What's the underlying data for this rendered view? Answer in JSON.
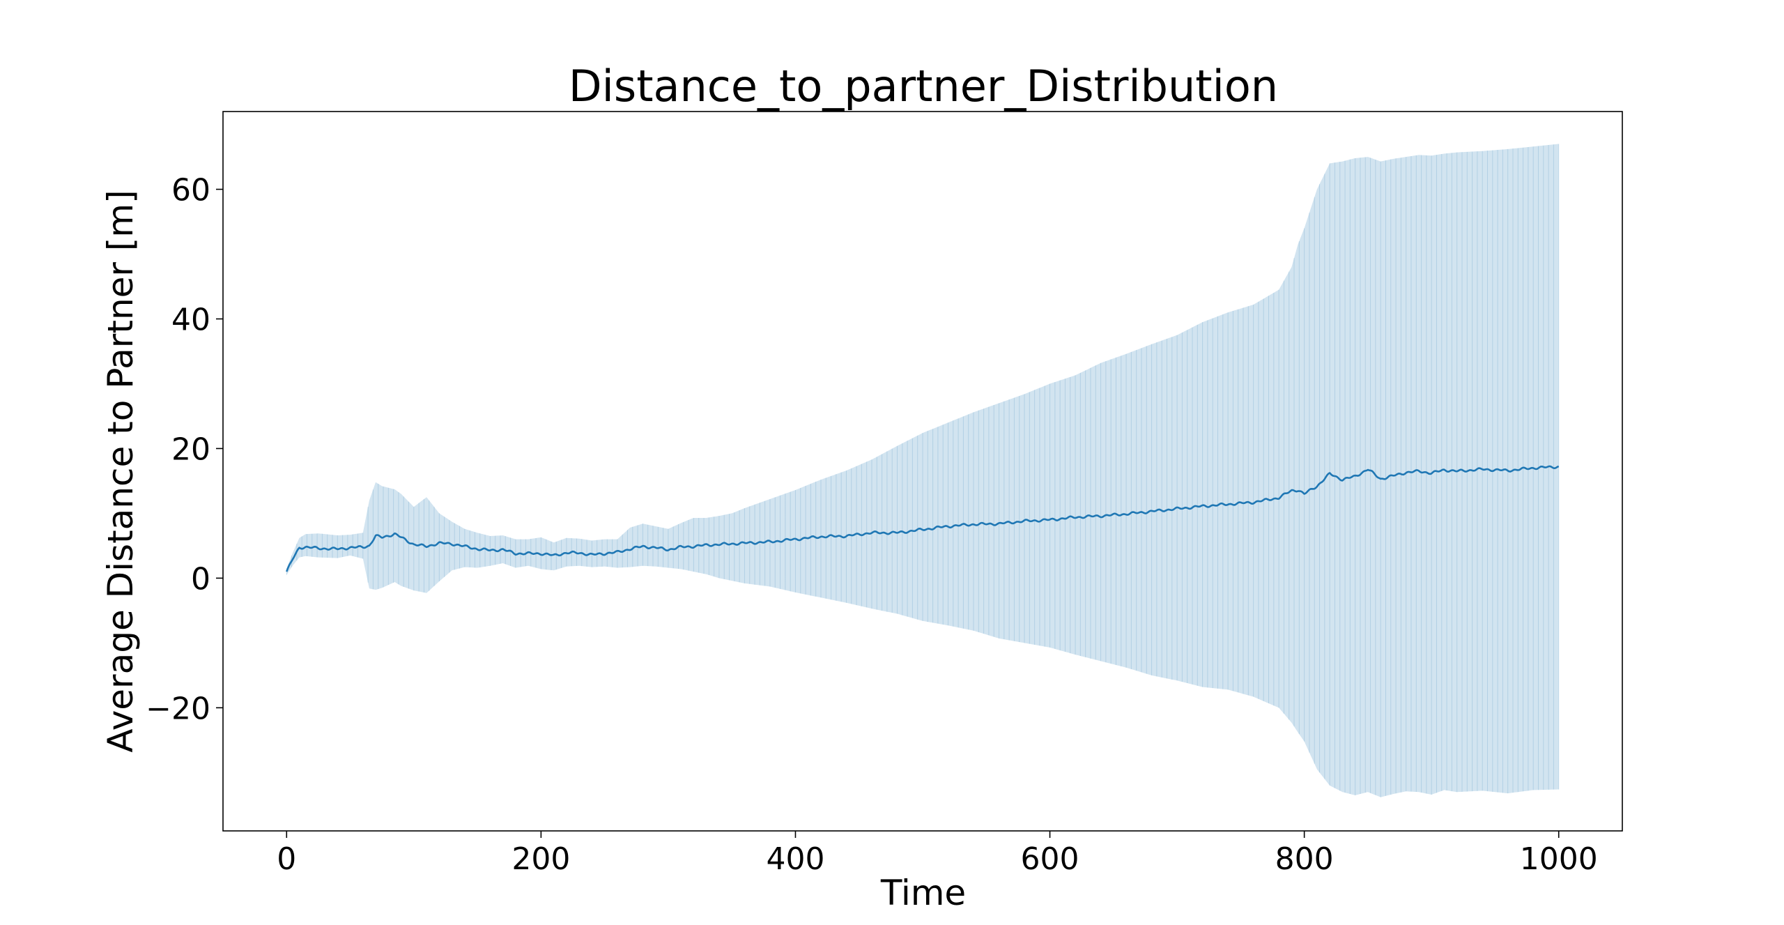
{
  "chart_data": {
    "type": "line",
    "title": "Distance_to_partner_Distribution",
    "xlabel": "Time",
    "ylabel": "Average Distance to Partner [m]",
    "xlim": [
      -50,
      1050
    ],
    "ylim": [
      -39,
      72
    ],
    "xticks": [
      0,
      200,
      400,
      600,
      800,
      1000
    ],
    "xtick_labels": [
      "0",
      "200",
      "400",
      "600",
      "800",
      "1000"
    ],
    "yticks": [
      -20,
      0,
      20,
      40,
      60
    ],
    "ytick_labels": [
      "−20",
      "0",
      "20",
      "40",
      "60"
    ],
    "grid": false,
    "legend": "none",
    "colors": {
      "line": "#1f77b4",
      "band": "#1f77b4",
      "band_opacity": 0.2,
      "axes": "#000000"
    },
    "series": [
      {
        "x": [
          0,
          5,
          10,
          15,
          25,
          40,
          50,
          60,
          65,
          70,
          75,
          85,
          90,
          100,
          110,
          120,
          130,
          140,
          150,
          160,
          170,
          180,
          190,
          200,
          210,
          220,
          230,
          240,
          250,
          260,
          270,
          280,
          290,
          300,
          310,
          320,
          330,
          340,
          350,
          360,
          380,
          400,
          420,
          440,
          460,
          480,
          500,
          520,
          540,
          560,
          580,
          600,
          620,
          640,
          660,
          680,
          700,
          720,
          740,
          760,
          780,
          790,
          795,
          800,
          810,
          820,
          830,
          840,
          850,
          860,
          870,
          880,
          890,
          900,
          910,
          920,
          940,
          960,
          980,
          1000
        ],
        "mean": [
          1.0,
          3.0,
          4.7,
          4.8,
          4.6,
          4.5,
          4.7,
          4.8,
          5.0,
          6.5,
          6.3,
          6.8,
          6.3,
          5.2,
          4.9,
          5.4,
          5.3,
          4.9,
          4.5,
          4.3,
          4.4,
          3.8,
          3.8,
          3.8,
          3.5,
          3.9,
          3.9,
          3.6,
          3.8,
          4.0,
          4.5,
          4.9,
          4.7,
          4.4,
          4.8,
          4.9,
          5.1,
          5.2,
          5.3,
          5.4,
          5.6,
          6.0,
          6.4,
          6.5,
          7.0,
          7.0,
          7.5,
          8.0,
          8.3,
          8.4,
          8.8,
          9.0,
          9.4,
          9.6,
          9.9,
          10.3,
          10.7,
          11.1,
          11.4,
          11.7,
          12.4,
          13.5,
          13.6,
          13.0,
          14.2,
          16.1,
          15.2,
          15.7,
          16.8,
          15.3,
          15.8,
          16.3,
          16.5,
          16.2,
          16.7,
          16.5,
          16.8,
          16.6,
          17.0,
          17.2
        ],
        "upper": [
          1.5,
          4.0,
          6.2,
          6.8,
          6.9,
          6.6,
          6.7,
          7.0,
          12.0,
          14.8,
          14.2,
          13.7,
          13.0,
          11.0,
          12.5,
          10.0,
          8.7,
          7.6,
          7.0,
          6.5,
          6.6,
          6.0,
          6.0,
          6.3,
          5.5,
          6.2,
          6.1,
          5.8,
          6.0,
          6.0,
          7.8,
          8.4,
          8.0,
          7.6,
          8.5,
          9.3,
          9.3,
          9.6,
          10.0,
          10.8,
          12.2,
          13.6,
          15.2,
          16.6,
          18.3,
          20.4,
          22.4,
          24.0,
          25.6,
          27.0,
          28.4,
          30.0,
          31.3,
          33.2,
          34.6,
          36.1,
          37.5,
          39.5,
          41.0,
          42.2,
          44.5,
          48.0,
          51.5,
          54.0,
          60.0,
          64.0,
          64.3,
          64.8,
          65.0,
          64.3,
          64.7,
          65.0,
          65.3,
          65.2,
          65.5,
          65.7,
          65.9,
          66.2,
          66.6,
          67.0
        ],
        "lower": [
          0.5,
          2.0,
          3.2,
          3.4,
          3.2,
          3.1,
          3.5,
          3.0,
          -1.6,
          -1.8,
          -1.5,
          -0.6,
          -1.2,
          -1.9,
          -2.3,
          -0.5,
          1.2,
          1.7,
          1.6,
          1.9,
          2.3,
          1.6,
          1.9,
          1.4,
          1.2,
          1.8,
          1.9,
          1.7,
          1.8,
          1.6,
          1.7,
          1.9,
          1.8,
          1.6,
          1.4,
          1.0,
          0.6,
          0.0,
          -0.4,
          -0.8,
          -1.3,
          -2.2,
          -3.0,
          -3.8,
          -4.7,
          -5.5,
          -6.6,
          -7.3,
          -8.1,
          -9.3,
          -10.0,
          -10.7,
          -11.8,
          -12.8,
          -13.8,
          -15.0,
          -15.8,
          -16.8,
          -17.2,
          -18.3,
          -20.0,
          -22.3,
          -23.8,
          -25.2,
          -29.5,
          -32.0,
          -33.0,
          -33.5,
          -33.0,
          -33.8,
          -33.3,
          -32.9,
          -33.0,
          -33.4,
          -32.7,
          -33.0,
          -32.8,
          -33.2,
          -32.7,
          -32.6
        ]
      }
    ]
  }
}
